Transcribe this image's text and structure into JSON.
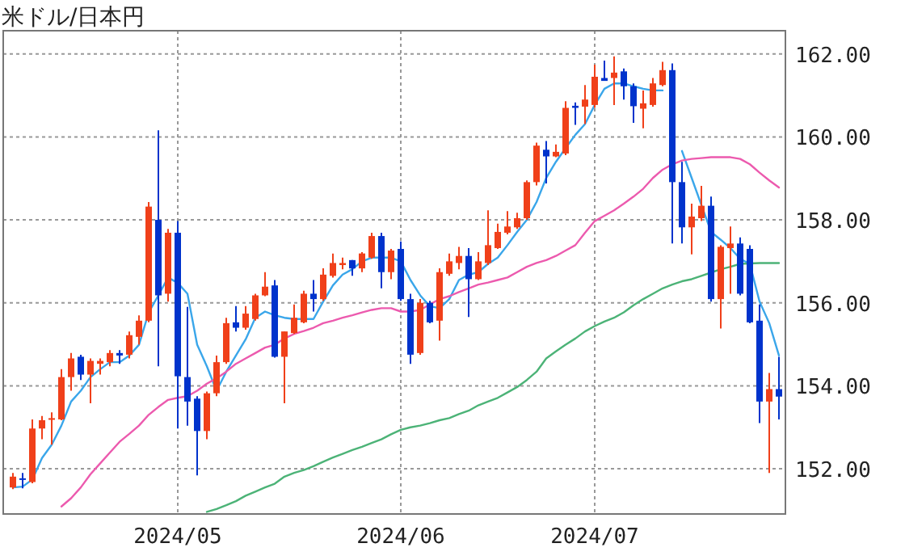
{
  "chart_data": {
    "type": "candlestick",
    "title": "米ドル/日本円",
    "categories": [
      null,
      null,
      null,
      null,
      null,
      null,
      null,
      null,
      null,
      null,
      null,
      null,
      null,
      null,
      null,
      null,
      null,
      "2024/05",
      null,
      null,
      null,
      null,
      null,
      null,
      null,
      null,
      null,
      null,
      null,
      null,
      null,
      null,
      null,
      null,
      null,
      null,
      null,
      null,
      null,
      null,
      "2024/06",
      null,
      null,
      null,
      null,
      null,
      null,
      null,
      null,
      null,
      null,
      null,
      null,
      null,
      null,
      null,
      null,
      null,
      null,
      null,
      "2024/07",
      null,
      null,
      null,
      null,
      null,
      null,
      null,
      null,
      null,
      null,
      null,
      null,
      null,
      null,
      null,
      null,
      null,
      null,
      null
    ],
    "ohlc": [
      [
        151.55,
        151.9,
        151.51,
        151.81
      ],
      [
        151.77,
        151.9,
        151.53,
        151.74
      ],
      [
        151.68,
        153.19,
        151.65,
        152.97
      ],
      [
        152.97,
        153.27,
        152.71,
        153.17
      ],
      [
        153.18,
        153.36,
        152.58,
        153.22
      ],
      [
        153.19,
        154.4,
        153.17,
        154.21
      ],
      [
        154.21,
        154.79,
        153.88,
        154.66
      ],
      [
        154.7,
        154.75,
        154.14,
        154.27
      ],
      [
        154.27,
        154.66,
        153.58,
        154.6
      ],
      [
        154.53,
        154.66,
        154.27,
        154.6
      ],
      [
        154.57,
        154.86,
        154.47,
        154.79
      ],
      [
        154.79,
        154.86,
        154.53,
        154.73
      ],
      [
        154.75,
        155.31,
        154.66,
        155.22
      ],
      [
        155.18,
        155.7,
        154.99,
        155.57
      ],
      [
        155.57,
        158.43,
        155.53,
        158.32
      ],
      [
        158.0,
        160.16,
        154.47,
        156.18
      ],
      [
        156.22,
        157.78,
        156.03,
        157.69
      ],
      [
        157.69,
        157.97,
        152.97,
        154.23
      ],
      [
        154.21,
        155.9,
        153.04,
        153.62
      ],
      [
        153.69,
        153.75,
        151.84,
        152.91
      ],
      [
        152.91,
        153.86,
        152.71,
        153.82
      ],
      [
        153.82,
        154.73,
        153.75,
        154.57
      ],
      [
        154.57,
        155.64,
        154.53,
        155.51
      ],
      [
        155.53,
        155.92,
        155.31,
        155.4
      ],
      [
        155.4,
        155.92,
        155.35,
        155.74
      ],
      [
        155.61,
        156.22,
        155.57,
        156.18
      ],
      [
        156.18,
        156.74,
        156.16,
        156.39
      ],
      [
        156.42,
        156.55,
        154.68,
        154.7
      ],
      [
        154.7,
        155.31,
        153.58,
        155.31
      ],
      [
        155.27,
        155.96,
        155.25,
        155.64
      ],
      [
        155.53,
        156.29,
        155.51,
        156.22
      ],
      [
        156.22,
        156.55,
        155.79,
        156.09
      ],
      [
        156.09,
        156.83,
        156.05,
        156.68
      ],
      [
        156.65,
        157.19,
        156.61,
        156.96
      ],
      [
        156.91,
        157.09,
        156.81,
        156.96
      ],
      [
        157.03,
        157.03,
        156.65,
        156.83
      ],
      [
        156.83,
        157.22,
        156.74,
        157.19
      ],
      [
        157.09,
        157.69,
        157.06,
        157.61
      ],
      [
        157.61,
        157.69,
        156.35,
        156.74
      ],
      [
        156.74,
        157.3,
        156.57,
        157.26
      ],
      [
        157.3,
        157.48,
        156.05,
        156.09
      ],
      [
        156.09,
        156.22,
        154.53,
        154.75
      ],
      [
        154.79,
        156.09,
        154.75,
        156.0
      ],
      [
        156.0,
        156.05,
        155.51,
        155.53
      ],
      [
        155.57,
        156.83,
        155.09,
        156.74
      ],
      [
        156.7,
        157.19,
        156.65,
        157.0
      ],
      [
        156.96,
        157.35,
        156.81,
        157.13
      ],
      [
        157.13,
        157.32,
        155.66,
        156.57
      ],
      [
        156.57,
        157.22,
        156.55,
        157.0
      ],
      [
        156.96,
        158.23,
        156.91,
        157.39
      ],
      [
        157.32,
        157.91,
        157.3,
        157.71
      ],
      [
        157.69,
        158.21,
        157.65,
        157.84
      ],
      [
        157.82,
        158.17,
        157.78,
        158.04
      ],
      [
        158.04,
        158.95,
        158.0,
        158.91
      ],
      [
        158.91,
        159.86,
        158.83,
        159.79
      ],
      [
        159.69,
        159.9,
        158.88,
        159.53
      ],
      [
        159.53,
        159.82,
        159.51,
        159.64
      ],
      [
        159.6,
        160.86,
        159.56,
        160.7
      ],
      [
        160.75,
        160.83,
        160.29,
        160.7
      ],
      [
        160.73,
        161.25,
        160.31,
        160.9
      ],
      [
        160.77,
        161.74,
        160.7,
        161.45
      ],
      [
        161.42,
        161.84,
        161.35,
        161.35
      ],
      [
        161.42,
        161.94,
        160.77,
        161.55
      ],
      [
        161.58,
        161.65,
        160.9,
        161.22
      ],
      [
        161.22,
        161.29,
        160.34,
        160.74
      ],
      [
        160.68,
        161.12,
        160.21,
        160.81
      ],
      [
        160.77,
        161.42,
        160.73,
        161.29
      ],
      [
        161.25,
        161.81,
        161.22,
        161.61
      ],
      [
        161.61,
        161.77,
        157.43,
        158.91
      ],
      [
        158.91,
        159.4,
        157.43,
        157.82
      ],
      [
        157.82,
        158.39,
        157.17,
        158.08
      ],
      [
        158.04,
        158.82,
        157.97,
        158.34
      ],
      [
        158.34,
        158.56,
        156.03,
        156.09
      ],
      [
        156.09,
        157.39,
        155.38,
        157.35
      ],
      [
        157.32,
        157.84,
        156.22,
        157.43
      ],
      [
        157.43,
        157.58,
        156.18,
        156.22
      ],
      [
        157.3,
        157.39,
        155.51,
        155.53
      ],
      [
        155.57,
        155.96,
        153.1,
        153.62
      ],
      [
        153.62,
        154.31,
        151.9,
        153.92
      ],
      [
        153.92,
        154.7,
        153.19,
        153.74
      ]
    ],
    "colors": [
      "#f0401a",
      "#0033cc",
      "#f0401a",
      "#f0401a",
      "#f0401a",
      "#f0401a",
      "#f0401a",
      "#0033cc",
      "#f0401a",
      "#f0401a",
      "#f0401a",
      "#0033cc",
      "#f0401a",
      "#f0401a",
      "#f0401a",
      "#0033cc",
      "#f0401a",
      "#0033cc",
      "#0033cc",
      "#0033cc",
      "#f0401a",
      "#f0401a",
      "#f0401a",
      "#0033cc",
      "#f0401a",
      "#f0401a",
      "#f0401a",
      "#0033cc",
      "#f0401a",
      "#f0401a",
      "#f0401a",
      "#0033cc",
      "#f0401a",
      "#f0401a",
      "#f0401a",
      "#0033cc",
      "#f0401a",
      "#f0401a",
      "#0033cc",
      "#f0401a",
      "#0033cc",
      "#0033cc",
      "#f0401a",
      "#0033cc",
      "#f0401a",
      "#f0401a",
      "#f0401a",
      "#0033cc",
      "#f0401a",
      "#f0401a",
      "#f0401a",
      "#f0401a",
      "#f0401a",
      "#f0401a",
      "#f0401a",
      "#0033cc",
      "#f0401a",
      "#f0401a",
      "#0033cc",
      "#f0401a",
      "#f0401a",
      "#0033cc",
      "#f0401a",
      "#0033cc",
      "#0033cc",
      "#f0401a",
      "#f0401a",
      "#f0401a",
      "#0033cc",
      "#0033cc",
      "#f0401a",
      "#f0401a",
      "#0033cc",
      "#f0401a",
      "#f0401a",
      "#0033cc",
      "#0033cc",
      "#0033cc",
      "#f0401a",
      "#0033cc"
    ],
    "series": [
      {
        "type": "line",
        "color": "#3aa6ea",
        "values": [
          151.55,
          151.57,
          151.74,
          152.26,
          152.58,
          153.04,
          153.62,
          153.88,
          154.21,
          154.4,
          154.57,
          154.57,
          154.73,
          154.99,
          155.77,
          156.18,
          156.61,
          156.48,
          156.22,
          154.99,
          154.47,
          153.88,
          154.34,
          154.73,
          155.12,
          155.64,
          155.79,
          155.7,
          155.64,
          155.61,
          155.61,
          155.61,
          156.03,
          156.42,
          156.68,
          156.81,
          157.0,
          157.09,
          157.09,
          157.09,
          157.0,
          156.55,
          156.18,
          155.92,
          155.87,
          156.09,
          156.55,
          156.68,
          156.74,
          156.94,
          157.09,
          157.39,
          157.71,
          158.0,
          158.43,
          159.01,
          159.4,
          159.73,
          160.05,
          160.31,
          160.77,
          161.16,
          161.29,
          161.29,
          161.22,
          161.16,
          161.12,
          161.12,
          null,
          159.66,
          159.01,
          158.36,
          157.71,
          157.52,
          157.32,
          157.06,
          156.94,
          156.03,
          155.51,
          154.73
        ]
      },
      {
        "type": "line",
        "color": "#ec5aae",
        "values": [
          null,
          null,
          null,
          null,
          null,
          151.09,
          151.29,
          151.55,
          151.87,
          152.13,
          152.39,
          152.65,
          152.84,
          153.04,
          153.3,
          153.49,
          153.66,
          153.71,
          153.75,
          153.88,
          154.05,
          154.18,
          154.34,
          154.53,
          154.66,
          154.79,
          154.92,
          154.99,
          155.14,
          155.25,
          155.32,
          155.4,
          155.51,
          155.57,
          155.64,
          155.7,
          155.77,
          155.83,
          155.87,
          155.87,
          155.79,
          155.79,
          155.83,
          155.96,
          156.09,
          156.16,
          156.26,
          156.35,
          156.44,
          156.49,
          156.55,
          156.61,
          156.74,
          156.87,
          156.96,
          157.03,
          157.13,
          157.26,
          157.39,
          157.69,
          157.97,
          158.1,
          158.23,
          158.39,
          158.56,
          158.75,
          159.01,
          159.21,
          159.34,
          159.43,
          159.47,
          159.49,
          159.51,
          159.51,
          159.51,
          159.47,
          159.34,
          159.14,
          158.95,
          158.78
        ]
      },
      {
        "type": "line",
        "color": "#4cb377",
        "values": [
          null,
          null,
          null,
          null,
          null,
          null,
          null,
          null,
          null,
          null,
          null,
          null,
          null,
          null,
          null,
          null,
          null,
          null,
          null,
          null,
          150.96,
          151.03,
          151.12,
          151.22,
          151.35,
          151.45,
          151.55,
          151.64,
          151.81,
          151.9,
          151.97,
          152.06,
          152.17,
          152.27,
          152.36,
          152.45,
          152.53,
          152.62,
          152.71,
          152.83,
          152.94,
          153.0,
          153.04,
          153.1,
          153.17,
          153.22,
          153.32,
          153.4,
          153.53,
          153.62,
          153.71,
          153.84,
          153.97,
          154.14,
          154.34,
          154.66,
          154.83,
          154.99,
          155.14,
          155.31,
          155.44,
          155.55,
          155.64,
          155.77,
          155.94,
          156.09,
          156.22,
          156.35,
          156.44,
          156.52,
          156.57,
          156.65,
          156.73,
          156.81,
          156.87,
          156.94,
          156.95,
          156.96,
          156.96,
          156.96
        ]
      }
    ],
    "ylim": [
      150.91,
      162.56
    ],
    "yticks": [
      {
        "value": 152,
        "label": "152.00"
      },
      {
        "value": 154,
        "label": "154.00"
      },
      {
        "value": 156,
        "label": "156.00"
      },
      {
        "value": 158,
        "label": "158.00"
      },
      {
        "value": 160,
        "label": "160.00"
      },
      {
        "value": 162,
        "label": "162.00"
      }
    ],
    "grid": true
  }
}
